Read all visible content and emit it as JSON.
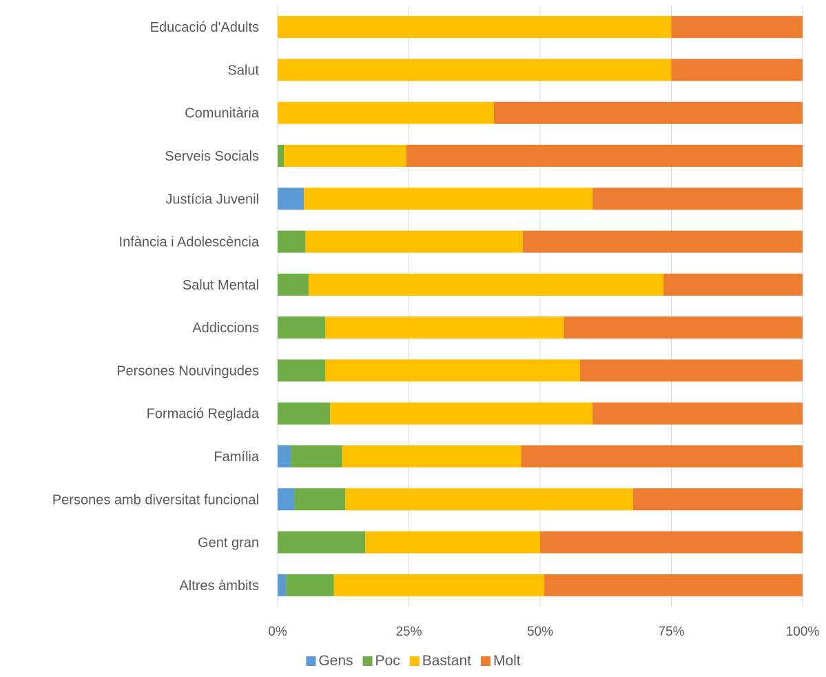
{
  "chart_data": {
    "type": "bar",
    "orientation": "horizontal",
    "stacking": "percent",
    "title": "",
    "xlabel": "",
    "ylabel": "",
    "xlim": [
      0,
      100
    ],
    "x_ticks": [
      "0%",
      "25%",
      "50%",
      "75%",
      "100%"
    ],
    "grid": true,
    "legend_position": "bottom",
    "categories": [
      "Educació d'Adults",
      "Salut",
      "Comunitària",
      "Serveis Socials",
      "Justícia Juvenil",
      "Infància i Adolescència",
      "Salut Mental",
      "Addiccions",
      "Persones Nouvingudes",
      "Formació Reglada",
      "Família",
      "Persones amb diversitat funcional",
      "Gent gran",
      "Altres àmbits"
    ],
    "series": [
      {
        "name": "Gens",
        "color": "#5B9BD5",
        "values": [
          0,
          0,
          0,
          0,
          5,
          0,
          0,
          0,
          0,
          0,
          2.5,
          3.2,
          0,
          1.6
        ]
      },
      {
        "name": "Poc",
        "color": "#70AD47",
        "values": [
          0,
          0,
          0,
          1.2,
          0,
          5.3,
          5.9,
          9.1,
          9.1,
          10,
          9.8,
          9.7,
          16.7,
          9.1
        ]
      },
      {
        "name": "Bastant",
        "color": "#FFC000",
        "values": [
          75,
          75,
          41.2,
          23.3,
          55,
          41.4,
          67.6,
          45.4,
          48.5,
          50,
          34.1,
          54.8,
          33.3,
          40.1
        ]
      },
      {
        "name": "Molt",
        "color": "#ED7D31",
        "values": [
          25,
          25,
          58.8,
          75.5,
          40,
          53.3,
          26.5,
          45.5,
          42.4,
          40,
          53.6,
          32.3,
          50,
          49.2
        ]
      }
    ]
  }
}
